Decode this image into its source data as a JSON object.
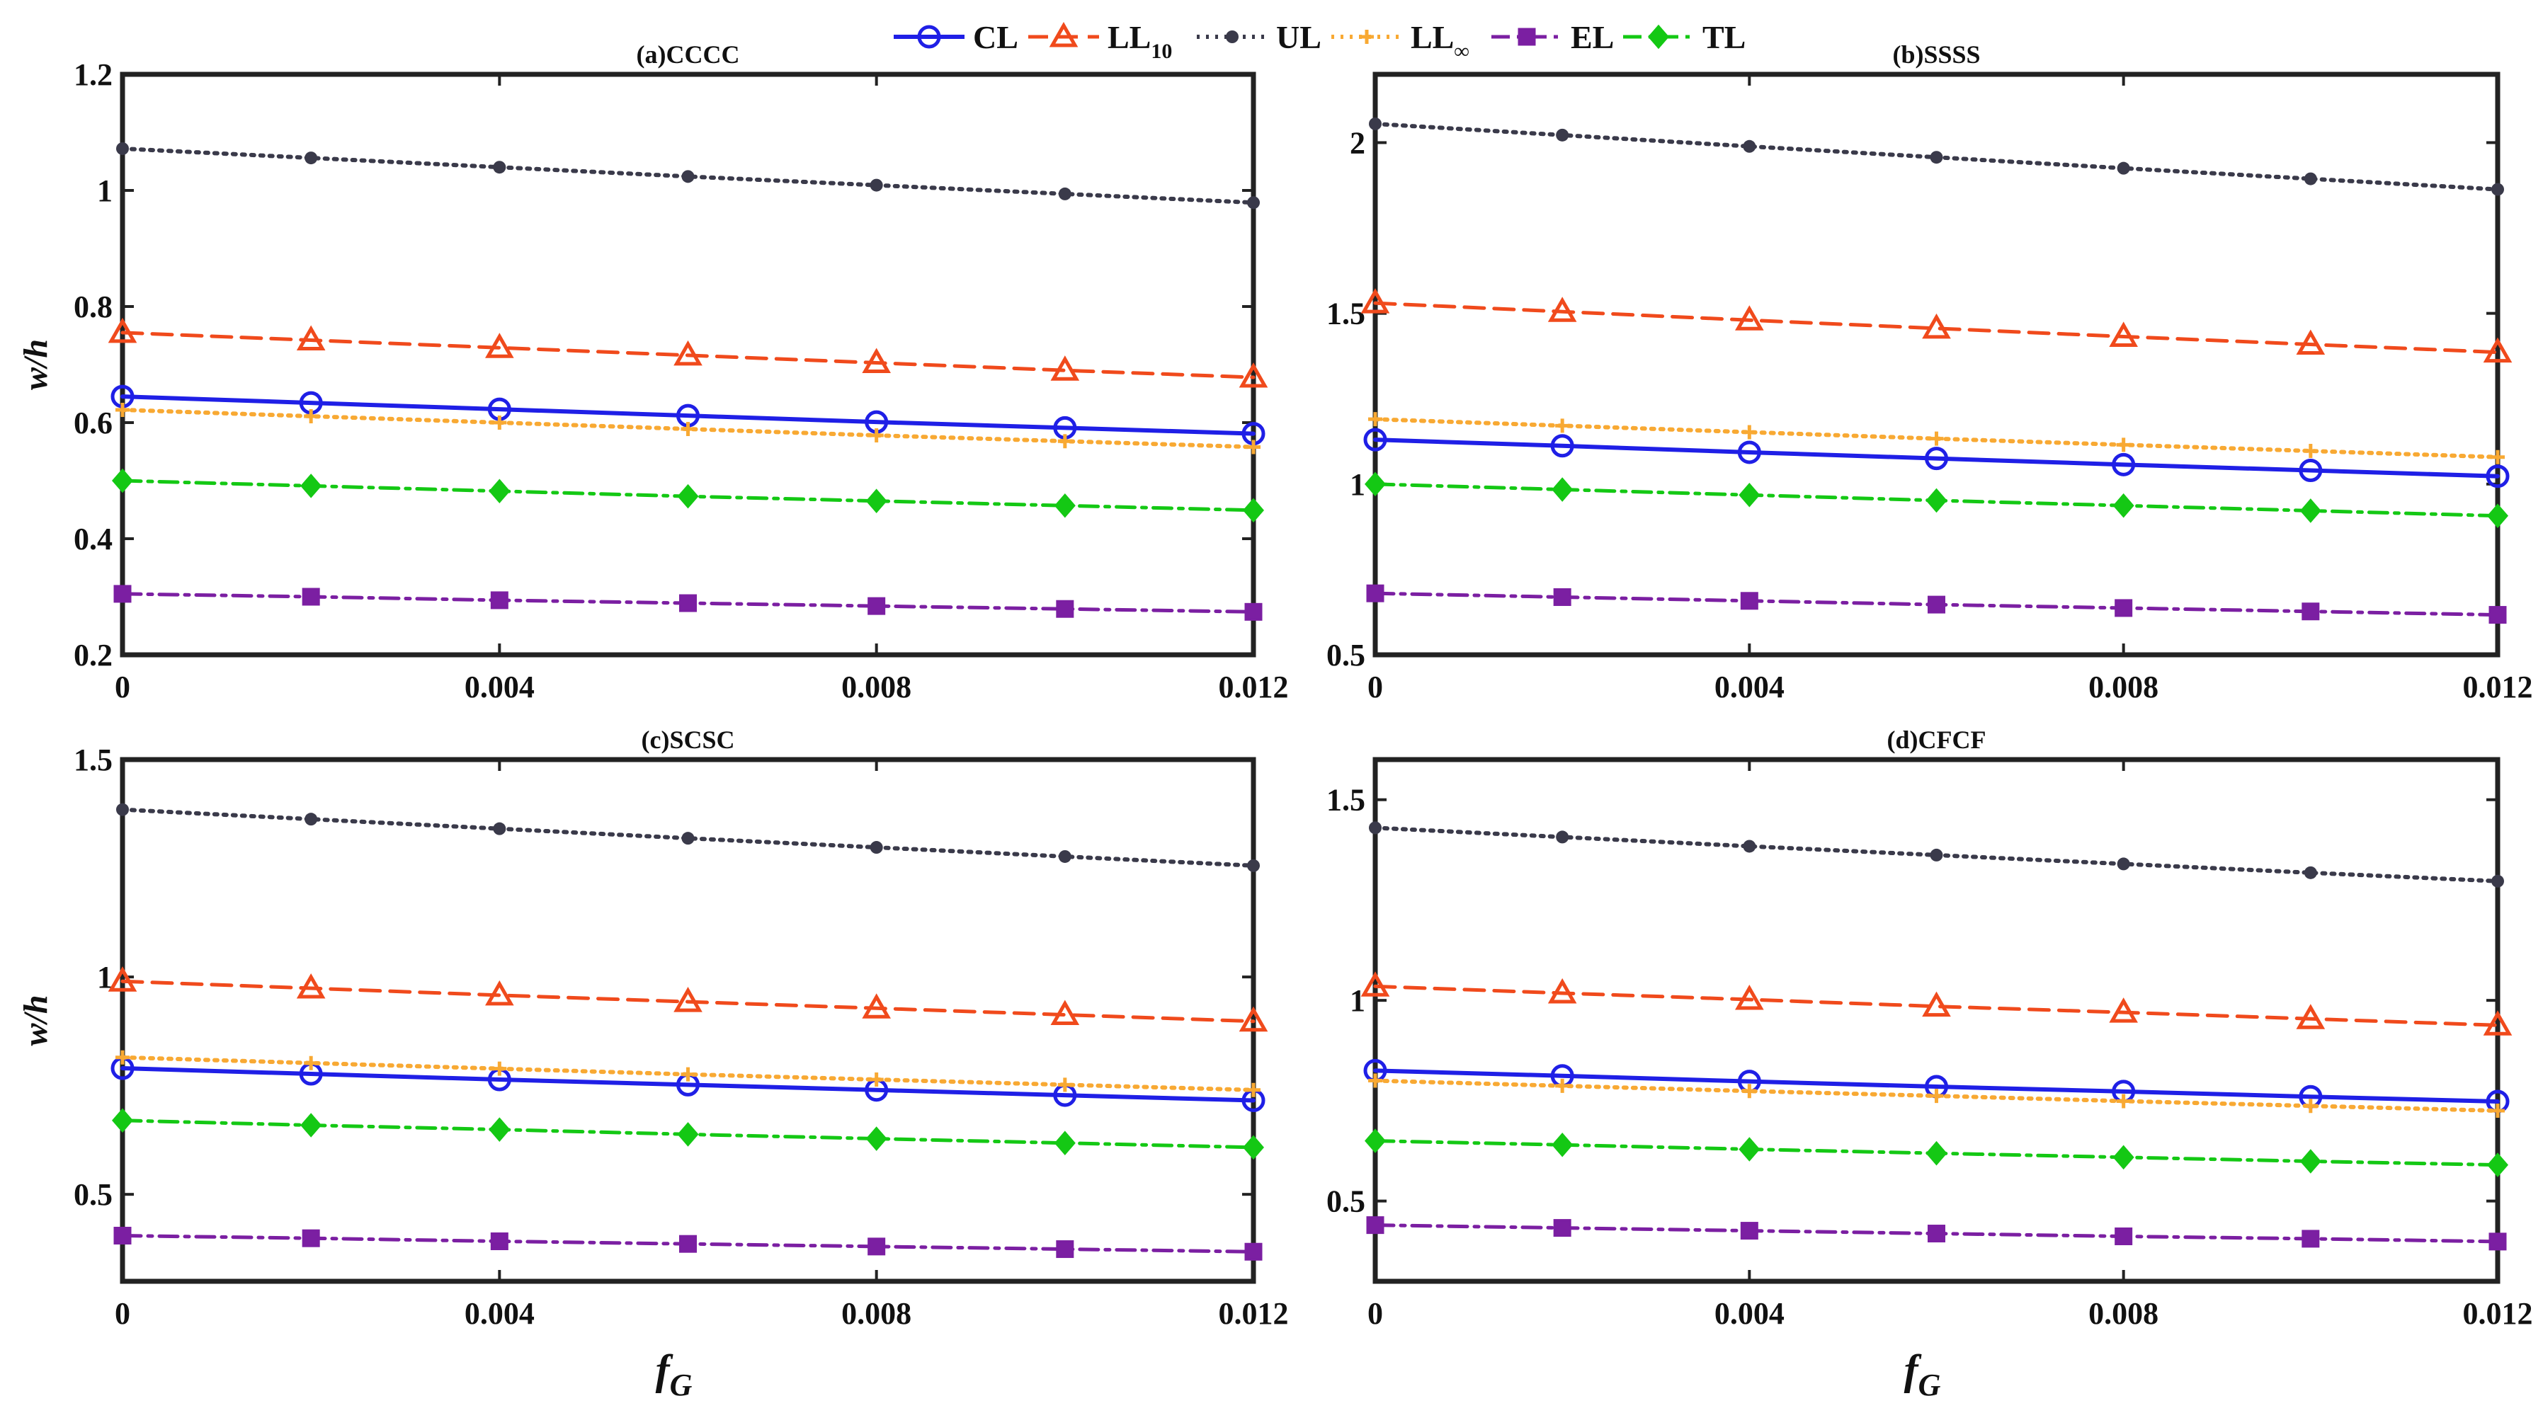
{
  "legend": [
    {
      "name": "CL",
      "sub": ""
    },
    {
      "name": "LL",
      "sub": "10"
    },
    {
      "name": "UL",
      "sub": ""
    },
    {
      "name": "LL",
      "sub": "∞"
    },
    {
      "name": "EL",
      "sub": ""
    },
    {
      "name": "TL",
      "sub": ""
    }
  ],
  "styles": [
    {
      "color": "#1f1fe6",
      "dash": "",
      "width": 6,
      "marker": "circle",
      "fill": "none"
    },
    {
      "color": "#f04a1c",
      "dash": "28,14",
      "width": 5,
      "marker": "triangle",
      "fill": "none"
    },
    {
      "color": "#3a3a4a",
      "dash": "4,9",
      "width": 6,
      "marker": "dot",
      "fill": "#3a3a4a"
    },
    {
      "color": "#f8a933",
      "dash": "4,9",
      "width": 6,
      "marker": "plus",
      "fill": "none"
    },
    {
      "color": "#7b1fa2",
      "dash": "26,10,6,10",
      "width": 5,
      "marker": "square",
      "fill": "#7b1fa2"
    },
    {
      "color": "#14c814",
      "dash": "26,10,6,10",
      "width": 5,
      "marker": "diamond",
      "fill": "#14c814"
    }
  ],
  "chart_data": [
    {
      "type": "line",
      "title": "(a)CCCC",
      "xlabel": "",
      "ylabel": "w/h",
      "xlim": [
        0,
        0.012
      ],
      "ylim": [
        0.2,
        1.2
      ],
      "xticks": [
        "0",
        "0.004",
        "0.008",
        "0.012"
      ],
      "yticks": [
        "0.2",
        "0.4",
        "0.6",
        "0.8",
        "1",
        "1.2"
      ],
      "x": [
        0,
        0.002,
        0.004,
        0.006,
        0.008,
        0.01,
        0.012
      ],
      "series": [
        {
          "name": "CL",
          "values": [
            0.645,
            0.634,
            0.623,
            0.612,
            0.601,
            0.591,
            0.581
          ]
        },
        {
          "name": "LL10",
          "values": [
            0.755,
            0.742,
            0.729,
            0.716,
            0.703,
            0.69,
            0.678
          ]
        },
        {
          "name": "UL",
          "values": [
            1.072,
            1.056,
            1.04,
            1.024,
            1.009,
            0.994,
            0.979
          ]
        },
        {
          "name": "LL∞",
          "values": [
            0.622,
            0.611,
            0.6,
            0.589,
            0.578,
            0.568,
            0.558
          ]
        },
        {
          "name": "EL",
          "values": [
            0.305,
            0.3,
            0.294,
            0.289,
            0.284,
            0.279,
            0.274
          ]
        },
        {
          "name": "TL",
          "values": [
            0.5,
            0.491,
            0.482,
            0.473,
            0.465,
            0.457,
            0.449
          ]
        }
      ]
    },
    {
      "type": "line",
      "title": "(b)SSSS",
      "xlabel": "",
      "ylabel": "",
      "xlim": [
        0,
        0.012
      ],
      "ylim": [
        0.5,
        2.2
      ],
      "xticks": [
        "0",
        "0.004",
        "0.008",
        "0.012"
      ],
      "yticks": [
        "0.5",
        "1",
        "1.5",
        "2"
      ],
      "x": [
        0,
        0.002,
        0.004,
        0.006,
        0.008,
        0.01,
        0.012
      ],
      "series": [
        {
          "name": "CL",
          "values": [
            1.13,
            1.112,
            1.093,
            1.075,
            1.057,
            1.04,
            1.023
          ]
        },
        {
          "name": "LL10",
          "values": [
            1.53,
            1.505,
            1.48,
            1.456,
            1.432,
            1.409,
            1.386
          ]
        },
        {
          "name": "UL",
          "values": [
            2.055,
            2.022,
            1.989,
            1.957,
            1.925,
            1.894,
            1.863
          ]
        },
        {
          "name": "LL∞",
          "values": [
            1.19,
            1.171,
            1.152,
            1.133,
            1.115,
            1.097,
            1.079
          ]
        },
        {
          "name": "EL",
          "values": [
            0.68,
            0.669,
            0.658,
            0.647,
            0.637,
            0.627,
            0.617
          ]
        },
        {
          "name": "TL",
          "values": [
            1.0,
            0.984,
            0.968,
            0.952,
            0.937,
            0.922,
            0.907
          ]
        }
      ]
    },
    {
      "type": "line",
      "title": "(c)SCSC",
      "xlabel": "fG",
      "ylabel": "w/h",
      "xlim": [
        0,
        0.012
      ],
      "ylim": [
        0.3,
        1.5
      ],
      "xticks": [
        "0",
        "0.004",
        "0.008",
        "0.012"
      ],
      "yticks": [
        "0.5",
        "1",
        "1.5"
      ],
      "x": [
        0,
        0.002,
        0.004,
        0.006,
        0.008,
        0.01,
        0.012
      ],
      "series": [
        {
          "name": "CL",
          "values": [
            0.79,
            0.777,
            0.764,
            0.752,
            0.74,
            0.728,
            0.716
          ]
        },
        {
          "name": "LL10",
          "values": [
            0.99,
            0.974,
            0.958,
            0.943,
            0.928,
            0.913,
            0.898
          ]
        },
        {
          "name": "UL",
          "values": [
            1.385,
            1.363,
            1.341,
            1.319,
            1.298,
            1.277,
            1.256
          ]
        },
        {
          "name": "LL∞",
          "values": [
            0.815,
            0.802,
            0.789,
            0.776,
            0.764,
            0.752,
            0.74
          ]
        },
        {
          "name": "EL",
          "values": [
            0.405,
            0.399,
            0.392,
            0.386,
            0.38,
            0.374,
            0.368
          ]
        },
        {
          "name": "TL",
          "values": [
            0.67,
            0.659,
            0.649,
            0.638,
            0.628,
            0.618,
            0.608
          ]
        }
      ]
    },
    {
      "type": "line",
      "title": "(d)CFCF",
      "xlabel": "fG",
      "ylabel": "",
      "xlim": [
        0,
        0.012
      ],
      "ylim": [
        0.3,
        1.6
      ],
      "xticks": [
        "0",
        "0.004",
        "0.008",
        "0.012"
      ],
      "yticks": [
        "0.5",
        "1",
        "1.5"
      ],
      "x": [
        0,
        0.002,
        0.004,
        0.006,
        0.008,
        0.01,
        0.012
      ],
      "series": [
        {
          "name": "CL",
          "values": [
            0.825,
            0.812,
            0.798,
            0.785,
            0.773,
            0.76,
            0.748
          ]
        },
        {
          "name": "LL10",
          "values": [
            1.035,
            1.018,
            1.002,
            0.985,
            0.97,
            0.954,
            0.938
          ]
        },
        {
          "name": "UL",
          "values": [
            1.43,
            1.407,
            1.384,
            1.362,
            1.34,
            1.318,
            1.297
          ]
        },
        {
          "name": "LL∞",
          "values": [
            0.8,
            0.787,
            0.774,
            0.762,
            0.749,
            0.737,
            0.725
          ]
        },
        {
          "name": "EL",
          "values": [
            0.44,
            0.433,
            0.426,
            0.419,
            0.412,
            0.406,
            0.399
          ]
        },
        {
          "name": "TL",
          "values": [
            0.65,
            0.64,
            0.629,
            0.619,
            0.609,
            0.599,
            0.59
          ]
        }
      ]
    }
  ]
}
